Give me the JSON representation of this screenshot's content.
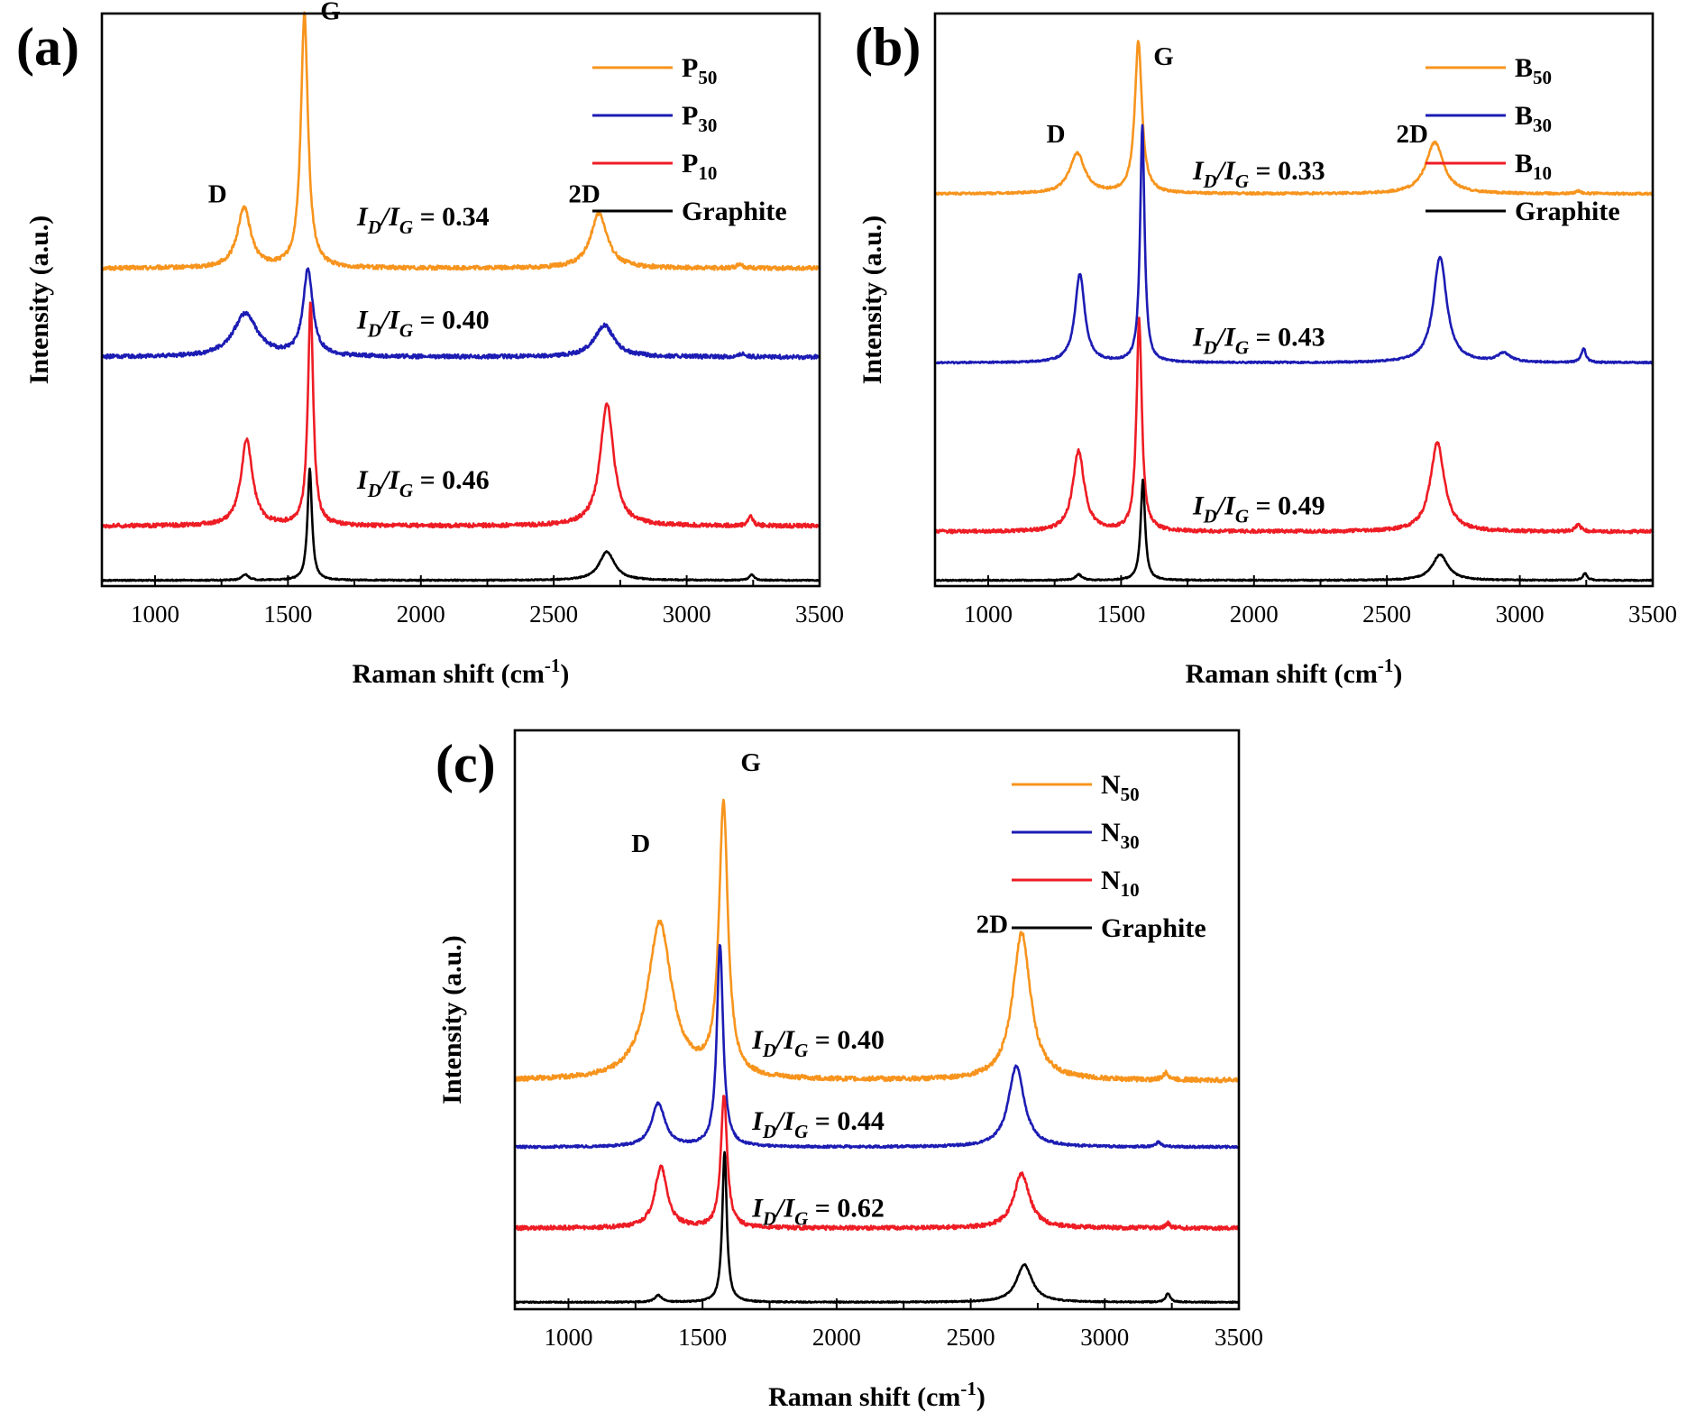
{
  "chart_data": [
    {
      "type": "line",
      "panel": "(a)",
      "xlabel_main": "Raman shift (cm",
      "xlabel_sup": "-1",
      "xlabel_end": ")",
      "ylabel": "Intensity (a.u.)",
      "xlim": [
        800,
        3500
      ],
      "ylim": [
        0,
        10
      ],
      "xticks": [
        1000,
        1500,
        2000,
        2500,
        3000,
        3500
      ],
      "legend": [
        {
          "base": "P",
          "sub": "50",
          "color": "#F7941D"
        },
        {
          "base": "P",
          "sub": "30",
          "color": "#1C1CB4"
        },
        {
          "base": "P",
          "sub": "10",
          "color": "#EE1C24"
        },
        {
          "base": "Graphite",
          "sub": "",
          "color": "#000000"
        }
      ],
      "series": [
        {
          "name": "P50",
          "color": "#F7941D",
          "baseline": 5.55,
          "slope": 0.0,
          "noise": 0.035,
          "peaks": [
            {
              "center": 1335,
              "height": 1.05,
              "width": 30
            },
            {
              "center": 1562,
              "height": 4.45,
              "width": 16
            },
            {
              "center": 2670,
              "height": 0.95,
              "width": 38
            },
            {
              "center": 3200,
              "height": 0.08,
              "width": 12
            }
          ]
        },
        {
          "name": "P30",
          "color": "#1C1CB4",
          "baseline": 4.0,
          "slope": 0.0,
          "noise": 0.035,
          "peaks": [
            {
              "center": 1340,
              "height": 0.75,
              "width": 55
            },
            {
              "center": 1575,
              "height": 1.5,
              "width": 22
            },
            {
              "center": 2690,
              "height": 0.55,
              "width": 45
            },
            {
              "center": 3210,
              "height": 0.06,
              "width": 12
            }
          ]
        },
        {
          "name": "P10",
          "color": "#EE1C24",
          "baseline": 1.05,
          "slope": 0.0,
          "noise": 0.035,
          "peaks": [
            {
              "center": 1345,
              "height": 1.5,
              "width": 26
            },
            {
              "center": 1585,
              "height": 3.9,
              "width": 12
            },
            {
              "center": 2700,
              "height": 2.15,
              "width": 30
            },
            {
              "center": 3240,
              "height": 0.18,
              "width": 10
            }
          ]
        },
        {
          "name": "Graphite",
          "color": "#000000",
          "baseline": 0.1,
          "slope": 0.0,
          "noise": 0.01,
          "peaks": [
            {
              "center": 1340,
              "height": 0.1,
              "width": 15
            },
            {
              "center": 1582,
              "height": 1.95,
              "width": 10
            },
            {
              "center": 2700,
              "height": 0.5,
              "width": 35
            },
            {
              "center": 3245,
              "height": 0.1,
              "width": 10
            }
          ]
        }
      ],
      "peak_labels": [
        {
          "text": "D",
          "x": 1235,
          "y": 6.7
        },
        {
          "text": "G",
          "x": 1660,
          "y": 9.9
        },
        {
          "text": "2D",
          "x": 2615,
          "y": 6.7
        }
      ],
      "ratios": [
        {
          "value": " = 0.34",
          "x": 1760,
          "y": 6.3
        },
        {
          "value": " = 0.40",
          "x": 1760,
          "y": 4.5
        },
        {
          "value": " = 0.46",
          "x": 1760,
          "y": 1.7
        }
      ]
    },
    {
      "type": "line",
      "panel": "(b)",
      "xlabel_main": "Raman shift (cm",
      "xlabel_sup": "-1",
      "xlabel_end": ")",
      "ylabel": "Intensity (a.u.)",
      "xlim": [
        800,
        3500
      ],
      "ylim": [
        0,
        10
      ],
      "xticks": [
        1000,
        1500,
        2000,
        2500,
        3000,
        3500
      ],
      "legend": [
        {
          "base": "B",
          "sub": "50",
          "color": "#F7941D"
        },
        {
          "base": "B",
          "sub": "30",
          "color": "#1C1CB4"
        },
        {
          "base": "B",
          "sub": "10",
          "color": "#EE1C24"
        },
        {
          "base": "Graphite",
          "sub": "",
          "color": "#000000"
        }
      ],
      "series": [
        {
          "name": "B50",
          "color": "#F7941D",
          "baseline": 6.85,
          "slope": 0.0,
          "noise": 0.02,
          "peaks": [
            {
              "center": 1335,
              "height": 0.7,
              "width": 35
            },
            {
              "center": 1565,
              "height": 2.65,
              "width": 16
            },
            {
              "center": 2680,
              "height": 0.9,
              "width": 40
            },
            {
              "center": 3220,
              "height": 0.05,
              "width": 12
            }
          ]
        },
        {
          "name": "B30",
          "color": "#1C1CB4",
          "baseline": 3.9,
          "slope": 0.0,
          "noise": 0.015,
          "peaks": [
            {
              "center": 1345,
              "height": 1.55,
              "width": 22
            },
            {
              "center": 1580,
              "height": 4.15,
              "width": 10
            },
            {
              "center": 2700,
              "height": 1.85,
              "width": 30
            },
            {
              "center": 2940,
              "height": 0.15,
              "width": 30
            },
            {
              "center": 3240,
              "height": 0.25,
              "width": 10
            }
          ]
        },
        {
          "name": "B10",
          "color": "#EE1C24",
          "baseline": 0.95,
          "slope": 0.0,
          "noise": 0.03,
          "peaks": [
            {
              "center": 1340,
              "height": 1.4,
              "width": 26
            },
            {
              "center": 1568,
              "height": 3.7,
              "width": 12
            },
            {
              "center": 2690,
              "height": 1.55,
              "width": 32
            },
            {
              "center": 3220,
              "height": 0.12,
              "width": 12
            }
          ]
        },
        {
          "name": "Graphite",
          "color": "#000000",
          "baseline": 0.1,
          "slope": 0.0,
          "noise": 0.01,
          "peaks": [
            {
              "center": 1340,
              "height": 0.1,
              "width": 15
            },
            {
              "center": 1582,
              "height": 1.75,
              "width": 10
            },
            {
              "center": 2700,
              "height": 0.45,
              "width": 35
            },
            {
              "center": 3245,
              "height": 0.12,
              "width": 10
            }
          ]
        }
      ],
      "peak_labels": [
        {
          "text": "D",
          "x": 1255,
          "y": 7.75
        },
        {
          "text": "G",
          "x": 1660,
          "y": 9.1
        },
        {
          "text": "2D",
          "x": 2595,
          "y": 7.75
        }
      ],
      "ratios": [
        {
          "value": " = 0.33",
          "x": 1770,
          "y": 7.1
        },
        {
          "value": " = 0.43",
          "x": 1770,
          "y": 4.2
        },
        {
          "value": " = 0.49",
          "x": 1770,
          "y": 1.25
        }
      ]
    },
    {
      "type": "line",
      "panel": "(c)",
      "xlabel_main": "Raman shift (cm",
      "xlabel_sup": "-1",
      "xlabel_end": ")",
      "ylabel": "Intensity (a.u.)",
      "xlim": [
        800,
        3500
      ],
      "ylim": [
        0,
        10
      ],
      "xticks": [
        1000,
        1500,
        2000,
        2500,
        3000,
        3500
      ],
      "legend": [
        {
          "base": "N",
          "sub": "50",
          "color": "#F7941D"
        },
        {
          "base": "N",
          "sub": "30",
          "color": "#1C1CB4"
        },
        {
          "base": "N",
          "sub": "10",
          "color": "#EE1C24"
        },
        {
          "base": "Graphite",
          "sub": "",
          "color": "#000000"
        }
      ],
      "series": [
        {
          "name": "N50",
          "color": "#F7941D",
          "baseline": 3.95,
          "slope": 0.0,
          "noise": 0.04,
          "peaks": [
            {
              "center": 1340,
              "height": 2.7,
              "width": 55
            },
            {
              "center": 1578,
              "height": 4.7,
              "width": 20
            },
            {
              "center": 2690,
              "height": 2.55,
              "width": 40
            },
            {
              "center": 3230,
              "height": 0.12,
              "width": 12
            }
          ]
        },
        {
          "name": "N30",
          "color": "#1C1CB4",
          "baseline": 2.8,
          "slope": 0.0,
          "noise": 0.02,
          "peaks": [
            {
              "center": 1335,
              "height": 0.75,
              "width": 30
            },
            {
              "center": 1565,
              "height": 3.5,
              "width": 14
            },
            {
              "center": 2670,
              "height": 1.4,
              "width": 35
            },
            {
              "center": 3200,
              "height": 0.08,
              "width": 12
            }
          ]
        },
        {
          "name": "N10",
          "color": "#EE1C24",
          "baseline": 1.4,
          "slope": 0.0,
          "noise": 0.035,
          "peaks": [
            {
              "center": 1345,
              "height": 1.05,
              "width": 28
            },
            {
              "center": 1580,
              "height": 2.3,
              "width": 14
            },
            {
              "center": 2690,
              "height": 0.95,
              "width": 35
            },
            {
              "center": 3235,
              "height": 0.08,
              "width": 10
            }
          ]
        },
        {
          "name": "Graphite",
          "color": "#000000",
          "baseline": 0.12,
          "slope": 0.0,
          "noise": 0.01,
          "peaks": [
            {
              "center": 1335,
              "height": 0.12,
              "width": 15
            },
            {
              "center": 1582,
              "height": 2.6,
              "width": 10
            },
            {
              "center": 2700,
              "height": 0.65,
              "width": 35
            },
            {
              "center": 3235,
              "height": 0.15,
              "width": 10
            }
          ]
        }
      ],
      "peak_labels": [
        {
          "text": "D",
          "x": 1270,
          "y": 7.9
        },
        {
          "text": "G",
          "x": 1680,
          "y": 9.3
        },
        {
          "text": "2D",
          "x": 2580,
          "y": 6.5
        }
      ],
      "ratios": [
        {
          "value": " = 0.40",
          "x": 1685,
          "y": 4.5
        },
        {
          "value": " = 0.44",
          "x": 1685,
          "y": 3.1
        },
        {
          "value": " = 0.62",
          "x": 1685,
          "y": 1.6
        }
      ]
    }
  ]
}
